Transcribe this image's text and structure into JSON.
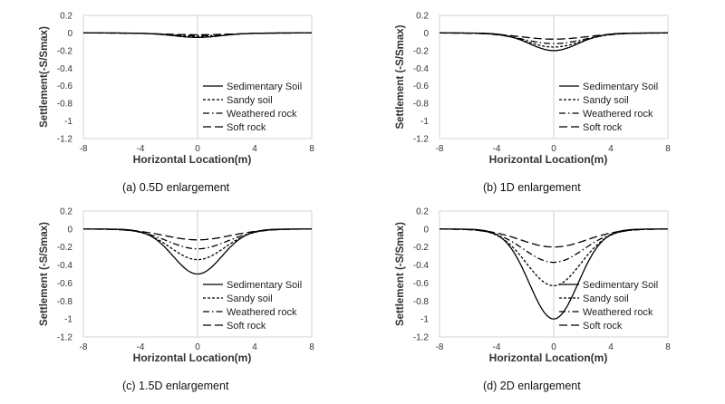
{
  "figure": {
    "panels": [
      {
        "caption": "(a)  0.5D  enlargement",
        "xlabel": "Horizontal Location(m)",
        "ylabel": "Settlement(-S/Smax)"
      },
      {
        "caption": "(b)  1D  enlargement",
        "xlabel": "Horizontal Location(m)",
        "ylabel": "Settlement (-S/Smax)"
      },
      {
        "caption": "(c)  1.5D  enlargement",
        "xlabel": "Horizontal Location(m)",
        "ylabel": "Settlement (-S/Smax)"
      },
      {
        "caption": "(d)  2D  enlargement",
        "xlabel": "Horizontal Location(m)",
        "ylabel": "Settlement (-S/Smax)"
      }
    ]
  },
  "chart_data": [
    {
      "type": "line",
      "title": "",
      "caption": "(a)  0.5D  enlargement",
      "xlabel": "Horizontal Location(m)",
      "ylabel": "Settlement(-S/Smax)",
      "xlim": [
        -8,
        8
      ],
      "ylim": [
        -1.2,
        0.2
      ],
      "xticks": [
        "-8",
        "-4",
        "0",
        "4",
        "8"
      ],
      "yticks": [
        "0.2",
        "0",
        "-0.2",
        "-0.4",
        "-0.6",
        "-0.8",
        "-1",
        "-1.2"
      ],
      "grid": "vertical line at x=0",
      "legend_position": "bottom-right",
      "series": [
        {
          "name": "Sedimentary Soil",
          "style": "solid",
          "min": -0.05,
          "width": 1.7
        },
        {
          "name": "Sandy soil",
          "style": "short-dash",
          "min": -0.04,
          "width": 1.9
        },
        {
          "name": "Weathered rock",
          "style": "dash-dot",
          "min": -0.03,
          "width": 2.1
        },
        {
          "name": "Soft rock",
          "style": "long-dash",
          "min": -0.02,
          "width": 2.3
        }
      ]
    },
    {
      "type": "line",
      "title": "",
      "caption": "(b)  1D  enlargement",
      "xlabel": "Horizontal Location(m)",
      "ylabel": "Settlement (-S/Smax)",
      "xlim": [
        -8,
        8
      ],
      "ylim": [
        -1.2,
        0.2
      ],
      "xticks": [
        "-8",
        "-4",
        "0",
        "4",
        "8"
      ],
      "yticks": [
        "0.2",
        "0",
        "-0.2",
        "-0.4",
        "-0.6",
        "-0.8",
        "-1",
        "-1.2"
      ],
      "grid": "vertical line at x=0",
      "legend_position": "bottom-right",
      "series": [
        {
          "name": "Sedimentary Soil",
          "style": "solid",
          "min": -0.2,
          "width": 1.7
        },
        {
          "name": "Sandy soil",
          "style": "short-dash",
          "min": -0.16,
          "width": 1.9
        },
        {
          "name": "Weathered rock",
          "style": "dash-dot",
          "min": -0.12,
          "width": 2.1
        },
        {
          "name": "Soft rock",
          "style": "long-dash",
          "min": -0.07,
          "width": 2.3
        }
      ]
    },
    {
      "type": "line",
      "title": "",
      "caption": "(c)  1.5D  enlargement",
      "xlabel": "Horizontal Location(m)",
      "ylabel": "Settlement (-S/Smax)",
      "xlim": [
        -8,
        8
      ],
      "ylim": [
        -1.2,
        0.2
      ],
      "xticks": [
        "-8",
        "-4",
        "0",
        "4",
        "8"
      ],
      "yticks": [
        "0.2",
        "0",
        "-0.2",
        "-0.4",
        "-0.6",
        "-0.8",
        "-1",
        "-1.2"
      ],
      "grid": "vertical line at x=0",
      "legend_position": "bottom-right",
      "series": [
        {
          "name": "Sedimentary Soil",
          "style": "solid",
          "min": -0.5,
          "width": 1.7
        },
        {
          "name": "Sandy soil",
          "style": "short-dash",
          "min": -0.34,
          "width": 1.9
        },
        {
          "name": "Weathered rock",
          "style": "dash-dot",
          "min": -0.22,
          "width": 2.1
        },
        {
          "name": "Soft rock",
          "style": "long-dash",
          "min": -0.12,
          "width": 2.3
        }
      ]
    },
    {
      "type": "line",
      "title": "",
      "caption": "(d)  2D  enlargement",
      "xlabel": "Horizontal Location(m)",
      "ylabel": "Settlement (-S/Smax)",
      "xlim": [
        -8,
        8
      ],
      "ylim": [
        -1.2,
        0.2
      ],
      "xticks": [
        "-8",
        "-4",
        "0",
        "4",
        "8"
      ],
      "yticks": [
        "0.2",
        "0",
        "-0.2",
        "-0.4",
        "-0.6",
        "-0.8",
        "-1",
        "-1.2"
      ],
      "grid": "vertical line at x=0",
      "legend_position": "bottom-right",
      "series": [
        {
          "name": "Sedimentary Soil",
          "style": "solid",
          "min": -1.0,
          "width": 1.7
        },
        {
          "name": "Sandy soil",
          "style": "short-dash",
          "min": -0.63,
          "width": 1.9
        },
        {
          "name": "Weathered rock",
          "style": "dash-dot",
          "min": -0.37,
          "width": 2.1
        },
        {
          "name": "Soft rock",
          "style": "long-dash",
          "min": -0.2,
          "width": 2.3
        }
      ]
    }
  ]
}
